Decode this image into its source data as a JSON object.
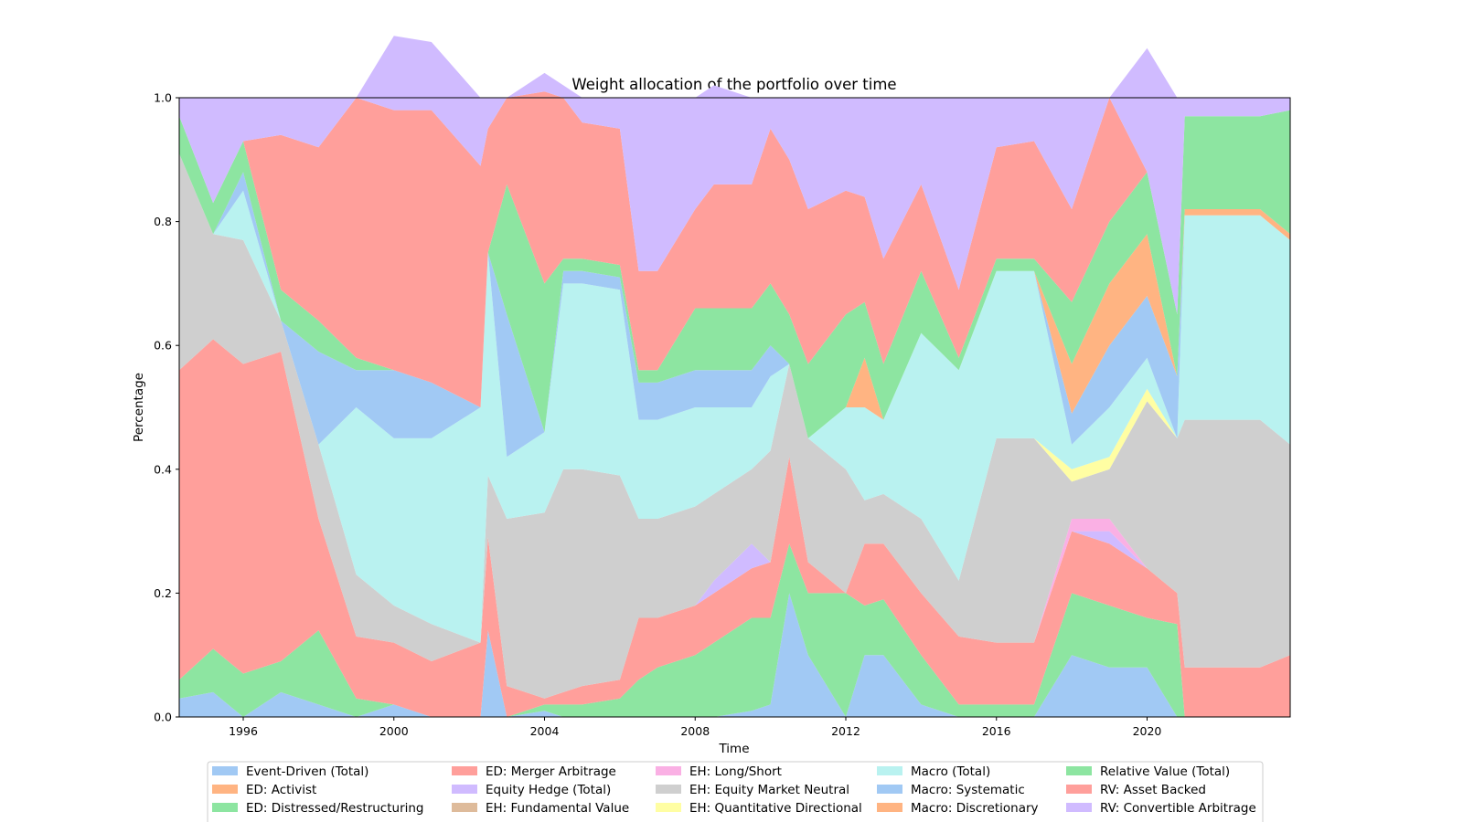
{
  "chart_data": {
    "type": "area",
    "title": "Weight allocation of the portfolio over time",
    "xlabel": "Time",
    "ylabel": "Percentage",
    "xlim": [
      1994.3,
      2023.8
    ],
    "ylim": [
      0.0,
      1.0
    ],
    "x_ticks": [
      "1996",
      "2000",
      "2004",
      "2008",
      "2012",
      "2016",
      "2020"
    ],
    "y_ticks": [
      "0.0",
      "0.2",
      "0.4",
      "0.6",
      "0.8",
      "1.0"
    ],
    "grid": false,
    "legend_position": "bottom-center",
    "x": [
      1994.3,
      1995.2,
      1996.0,
      1997.0,
      1998.0,
      1999.0,
      2000.0,
      2001.0,
      2002.3,
      2002.5,
      2003.0,
      2004.0,
      2004.5,
      2005.0,
      2006.0,
      2006.5,
      2007.0,
      2008.0,
      2008.5,
      2009.5,
      2010.0,
      2010.5,
      2011.0,
      2012.0,
      2012.5,
      2013.0,
      2014.0,
      2015.0,
      2016.0,
      2017.0,
      2018.0,
      2019.0,
      2020.0,
      2020.8,
      2021.0,
      2022.0,
      2023.0,
      2023.8
    ],
    "series": [
      {
        "name": "Event-Driven (Total)",
        "color": "#a1c9f4",
        "values": [
          0.03,
          0.04,
          0.0,
          0.04,
          0.02,
          0.0,
          0.02,
          0.0,
          0.0,
          0.14,
          0.0,
          0.01,
          0.0,
          0.0,
          0.0,
          0.0,
          0.0,
          0.0,
          0.0,
          0.01,
          0.02,
          0.2,
          0.1,
          0.0,
          0.1,
          0.1,
          0.02,
          0.0,
          0.0,
          0.0,
          0.1,
          0.08,
          0.08,
          0.0,
          0.0,
          0.0,
          0.0,
          0.0
        ]
      },
      {
        "name": "ED: Activist",
        "color": "#ffb482",
        "values": [
          0,
          0,
          0,
          0,
          0,
          0,
          0,
          0,
          0,
          0,
          0,
          0,
          0,
          0,
          0,
          0,
          0,
          0,
          0,
          0,
          0,
          0,
          0,
          0,
          0,
          0,
          0,
          0,
          0,
          0,
          0,
          0,
          0,
          0,
          0,
          0,
          0,
          0
        ]
      },
      {
        "name": "ED: Distressed/Restructuring",
        "color": "#8de5a1",
        "values": [
          0.03,
          0.07,
          0.07,
          0.05,
          0.12,
          0.03,
          0.0,
          0.0,
          0.0,
          0.0,
          0.0,
          0.01,
          0.02,
          0.02,
          0.03,
          0.06,
          0.08,
          0.1,
          0.12,
          0.15,
          0.14,
          0.08,
          0.1,
          0.2,
          0.08,
          0.09,
          0.08,
          0.02,
          0.02,
          0.02,
          0.1,
          0.1,
          0.08,
          0.15,
          0.0,
          0.0,
          0.0,
          0.0
        ]
      },
      {
        "name": "ED: Merger Arbitrage",
        "color": "#ff9f9b",
        "values": [
          0.5,
          0.5,
          0.5,
          0.5,
          0.18,
          0.1,
          0.1,
          0.09,
          0.12,
          0.15,
          0.05,
          0.01,
          0.02,
          0.03,
          0.03,
          0.1,
          0.08,
          0.08,
          0.08,
          0.08,
          0.09,
          0.14,
          0.05,
          0.0,
          0.1,
          0.09,
          0.1,
          0.11,
          0.1,
          0.1,
          0.1,
          0.1,
          0.08,
          0.05,
          0.08,
          0.08,
          0.08,
          0.1
        ]
      },
      {
        "name": "Equity Hedge (Total)",
        "color": "#d0bbff",
        "values": [
          0,
          0,
          0,
          0,
          0,
          0,
          0,
          0,
          0,
          0,
          0,
          0,
          0,
          0,
          0,
          0,
          0,
          0,
          0.02,
          0.04,
          0.0,
          0.0,
          0.0,
          0.0,
          0.0,
          0.0,
          0.0,
          0.0,
          0.0,
          0.0,
          0.0,
          0.02,
          0.0,
          0.0,
          0.0,
          0.0,
          0.0,
          0.0
        ]
      },
      {
        "name": "EH: Fundamental Value",
        "color": "#debb9b",
        "values": [
          0,
          0,
          0,
          0,
          0,
          0,
          0,
          0,
          0,
          0,
          0,
          0,
          0,
          0,
          0,
          0,
          0,
          0,
          0,
          0,
          0,
          0,
          0,
          0,
          0,
          0,
          0,
          0,
          0,
          0,
          0,
          0,
          0,
          0,
          0,
          0,
          0,
          0
        ]
      },
      {
        "name": "EH: Long/Short",
        "color": "#fab0e4",
        "values": [
          0,
          0,
          0,
          0,
          0,
          0,
          0,
          0,
          0,
          0,
          0,
          0,
          0,
          0,
          0,
          0,
          0,
          0,
          0,
          0,
          0,
          0,
          0,
          0,
          0,
          0,
          0,
          0,
          0,
          0,
          0.02,
          0.02,
          0.0,
          0.0,
          0.0,
          0.0,
          0.0,
          0.0
        ]
      },
      {
        "name": "EH: Equity Market Neutral",
        "color": "#cfcfcf",
        "values": [
          0.35,
          0.17,
          0.2,
          0.05,
          0.12,
          0.1,
          0.06,
          0.06,
          0.0,
          0.1,
          0.27,
          0.3,
          0.36,
          0.35,
          0.33,
          0.16,
          0.16,
          0.16,
          0.14,
          0.12,
          0.18,
          0.15,
          0.2,
          0.2,
          0.07,
          0.08,
          0.12,
          0.09,
          0.33,
          0.33,
          0.06,
          0.08,
          0.27,
          0.25,
          0.4,
          0.4,
          0.4,
          0.34
        ]
      },
      {
        "name": "EH: Quantitative Directional",
        "color": "#fffea3",
        "values": [
          0,
          0,
          0,
          0,
          0,
          0,
          0,
          0,
          0,
          0,
          0,
          0,
          0,
          0,
          0,
          0,
          0,
          0,
          0,
          0,
          0,
          0,
          0,
          0,
          0,
          0,
          0,
          0,
          0,
          0,
          0.02,
          0.02,
          0.02,
          0.0,
          0.0,
          0.0,
          0.0,
          0.0
        ]
      },
      {
        "name": "Macro (Total)",
        "color": "#b9f2f0",
        "values": [
          0.0,
          0.0,
          0.08,
          0.0,
          0.0,
          0.27,
          0.27,
          0.3,
          0.38,
          0.36,
          0.1,
          0.13,
          0.3,
          0.3,
          0.3,
          0.16,
          0.16,
          0.16,
          0.14,
          0.1,
          0.12,
          0.0,
          0.0,
          0.1,
          0.15,
          0.12,
          0.3,
          0.34,
          0.27,
          0.27,
          0.04,
          0.08,
          0.05,
          0.0,
          0.33,
          0.33,
          0.33,
          0.33
        ]
      },
      {
        "name": "Macro: Systematic",
        "color": "#a1c9f4",
        "values": [
          0.0,
          0.0,
          0.03,
          0.0,
          0.15,
          0.06,
          0.11,
          0.09,
          0.0,
          0.0,
          0.23,
          0.0,
          0.02,
          0.02,
          0.02,
          0.06,
          0.06,
          0.06,
          0.06,
          0.06,
          0.05,
          0.0,
          0.0,
          0.0,
          0.0,
          0.0,
          0.0,
          0.0,
          0.0,
          0.0,
          0.05,
          0.1,
          0.1,
          0.1,
          0.0,
          0.0,
          0.0,
          0.0
        ]
      },
      {
        "name": "Macro: Discretionary",
        "color": "#ffb482",
        "values": [
          0.0,
          0.0,
          0.0,
          0.0,
          0.0,
          0.0,
          0.0,
          0.0,
          0.0,
          0.0,
          0.0,
          0.0,
          0.0,
          0.0,
          0.0,
          0.0,
          0.0,
          0.0,
          0.0,
          0.0,
          0.0,
          0.0,
          0.0,
          0.0,
          0.08,
          0.0,
          0.0,
          0.0,
          0.0,
          0.0,
          0.08,
          0.1,
          0.1,
          0.0,
          0.01,
          0.01,
          0.01,
          0.01
        ]
      },
      {
        "name": "Relative Value (Total)",
        "color": "#8de5a1",
        "values": [
          0.06,
          0.05,
          0.05,
          0.05,
          0.05,
          0.02,
          0.0,
          0.0,
          0.0,
          0.0,
          0.21,
          0.24,
          0.02,
          0.02,
          0.02,
          0.02,
          0.02,
          0.1,
          0.1,
          0.1,
          0.1,
          0.08,
          0.12,
          0.15,
          0.09,
          0.09,
          0.1,
          0.02,
          0.02,
          0.02,
          0.1,
          0.1,
          0.1,
          0.1,
          0.15,
          0.15,
          0.15,
          0.2
        ]
      },
      {
        "name": "RV: Asset Backed",
        "color": "#ff9f9b",
        "values": [
          0.0,
          0.0,
          0.0,
          0.25,
          0.28,
          0.42,
          0.42,
          0.44,
          0.39,
          0.2,
          0.14,
          0.31,
          0.26,
          0.22,
          0.22,
          0.16,
          0.16,
          0.16,
          0.2,
          0.2,
          0.25,
          0.25,
          0.25,
          0.2,
          0.17,
          0.17,
          0.14,
          0.11,
          0.18,
          0.19,
          0.15,
          0.2,
          0.0,
          0.0,
          0.0,
          0.0,
          0.0,
          0.0
        ]
      },
      {
        "name": "RV: Convertible Arbitrage",
        "color": "#d0bbff",
        "values": [
          0.03,
          0.17,
          0.07,
          0.06,
          0.08,
          0.0,
          0.12,
          0.11,
          0.11,
          0.05,
          0.0,
          0.03,
          0.02,
          0.04,
          0.05,
          0.28,
          0.28,
          0.18,
          0.16,
          0.14,
          0.05,
          0.1,
          0.18,
          0.15,
          0.16,
          0.26,
          0.14,
          0.31,
          0.08,
          0.07,
          0.18,
          0.0,
          0.2,
          0.35,
          0.03,
          0.03,
          0.03,
          0.02
        ]
      }
    ]
  }
}
